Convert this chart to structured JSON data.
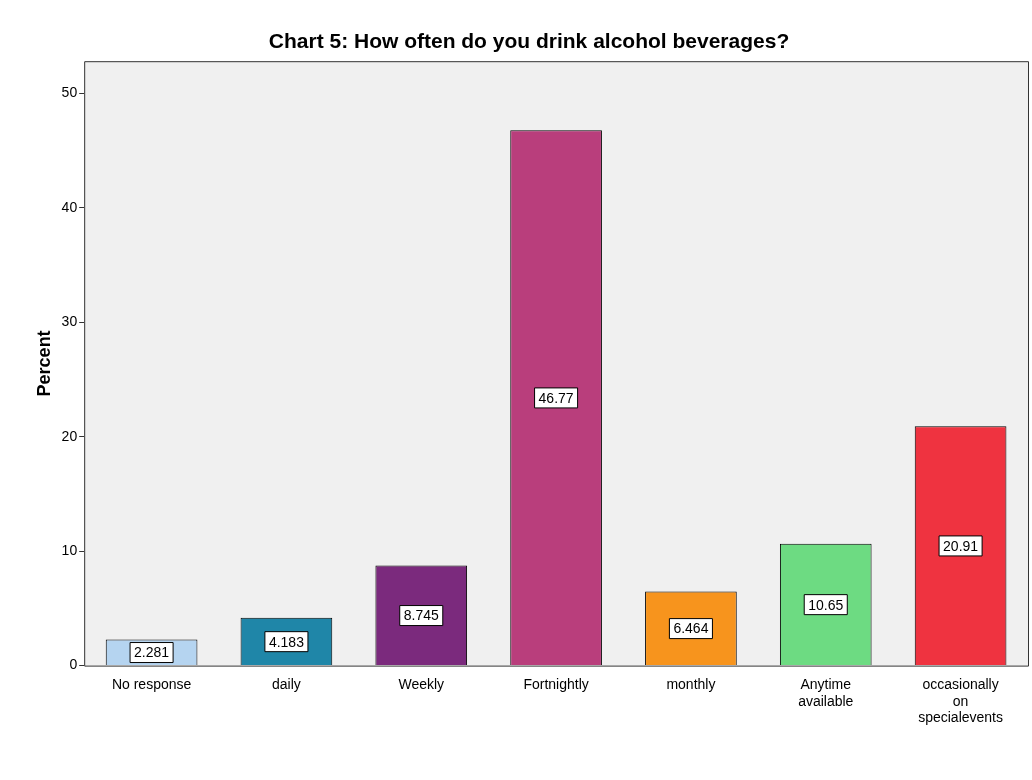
{
  "chart_data": {
    "type": "bar",
    "title": "Chart 5: How often do you drink alcohol beverages?",
    "ylabel": "Percent",
    "categories": [
      "No response",
      "daily",
      "Weekly",
      "Fortnightly",
      "monthly",
      "Anytime available",
      "occasionally on specialevents"
    ],
    "values": [
      2.281,
      4.183,
      8.745,
      46.77,
      6.464,
      10.65,
      20.91
    ],
    "colors": [
      "#b5d4f0",
      "#1f86a8",
      "#7b2a7d",
      "#b93e7c",
      "#f7941d",
      "#6ddb82",
      "#ef3340"
    ],
    "ylim": [
      0,
      52.8
    ],
    "yticks": [
      0,
      10,
      20,
      30,
      40,
      50
    ],
    "data_labels": true
  }
}
